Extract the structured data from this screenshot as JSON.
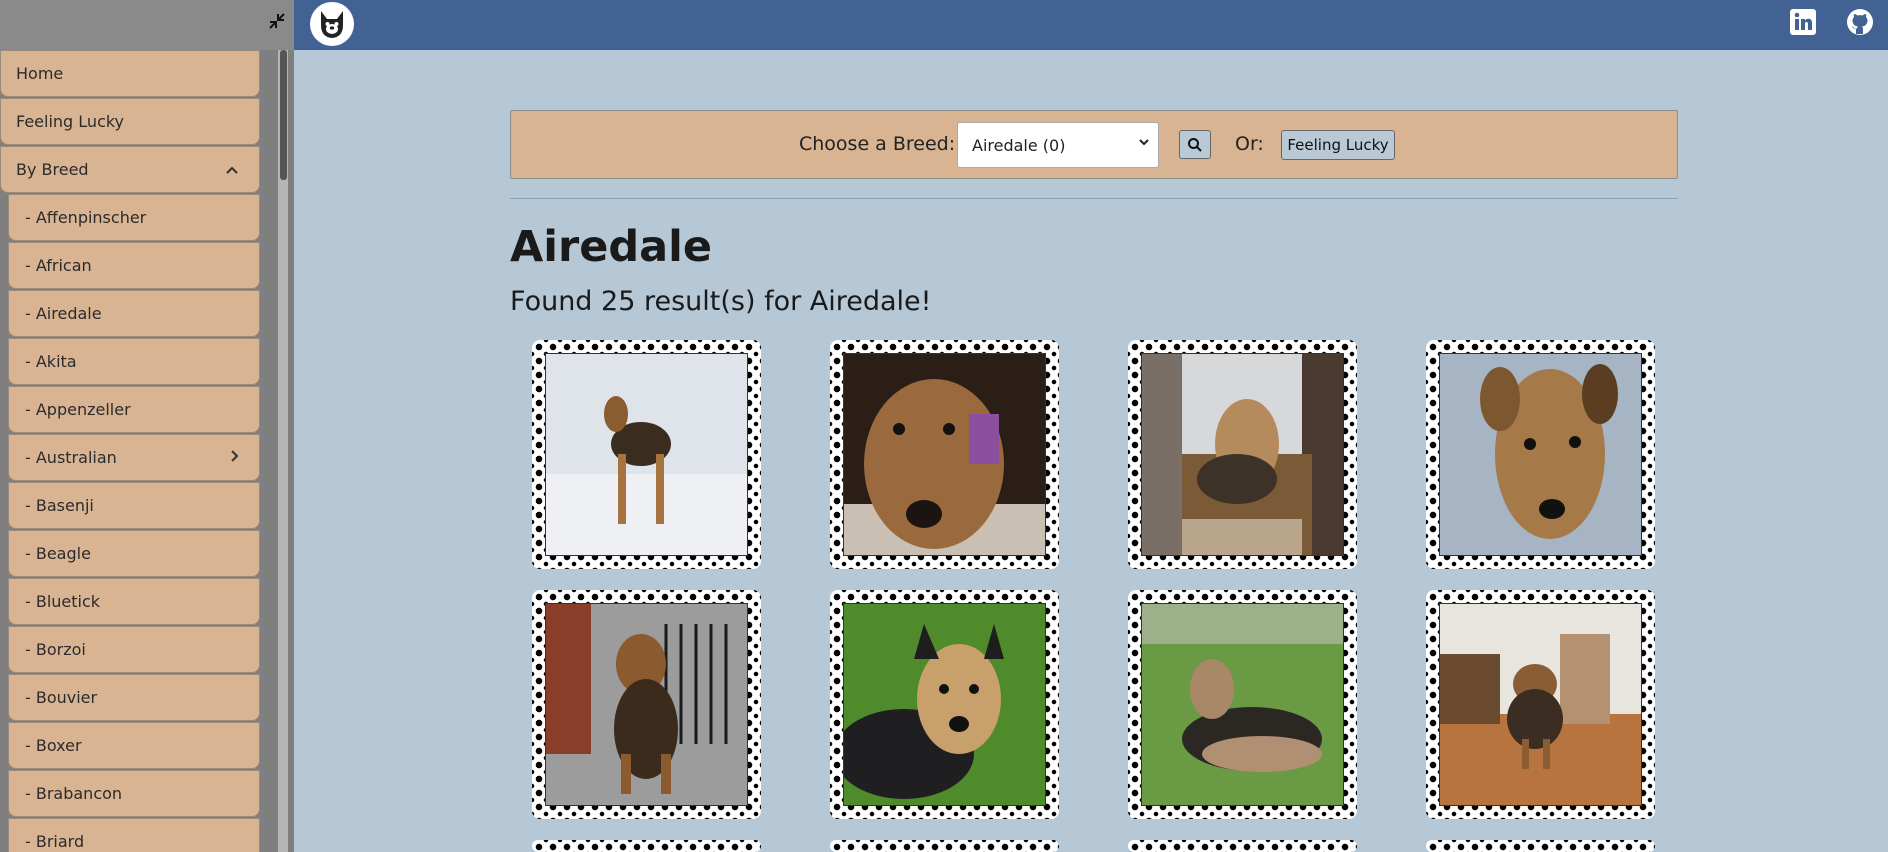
{
  "sidebar": {
    "items": [
      {
        "label": "Home"
      },
      {
        "label": "Feeling Lucky"
      },
      {
        "label": "By Breed"
      }
    ],
    "breeds": [
      {
        "label": "- Affenpinscher"
      },
      {
        "label": "- African"
      },
      {
        "label": "- Airedale"
      },
      {
        "label": "- Akita"
      },
      {
        "label": "- Appenzeller"
      },
      {
        "label": "- Australian"
      },
      {
        "label": "- Basenji"
      },
      {
        "label": "- Beagle"
      },
      {
        "label": "- Bluetick"
      },
      {
        "label": "- Borzoi"
      },
      {
        "label": "- Bouvier"
      },
      {
        "label": "- Boxer"
      },
      {
        "label": "- Brabancon"
      },
      {
        "label": "- Briard"
      }
    ]
  },
  "search": {
    "choose_label": "Choose a Breed:",
    "selected_breed": "Airedale (0)",
    "or_label": "Or:",
    "lucky_label": "Feeling Lucky"
  },
  "main": {
    "title": "Airedale",
    "results_text": "Found 25 result(s) for Airedale!"
  },
  "colors": {
    "topbar": "#416292",
    "background": "#b6c8d6",
    "sand": "#d8b492"
  }
}
